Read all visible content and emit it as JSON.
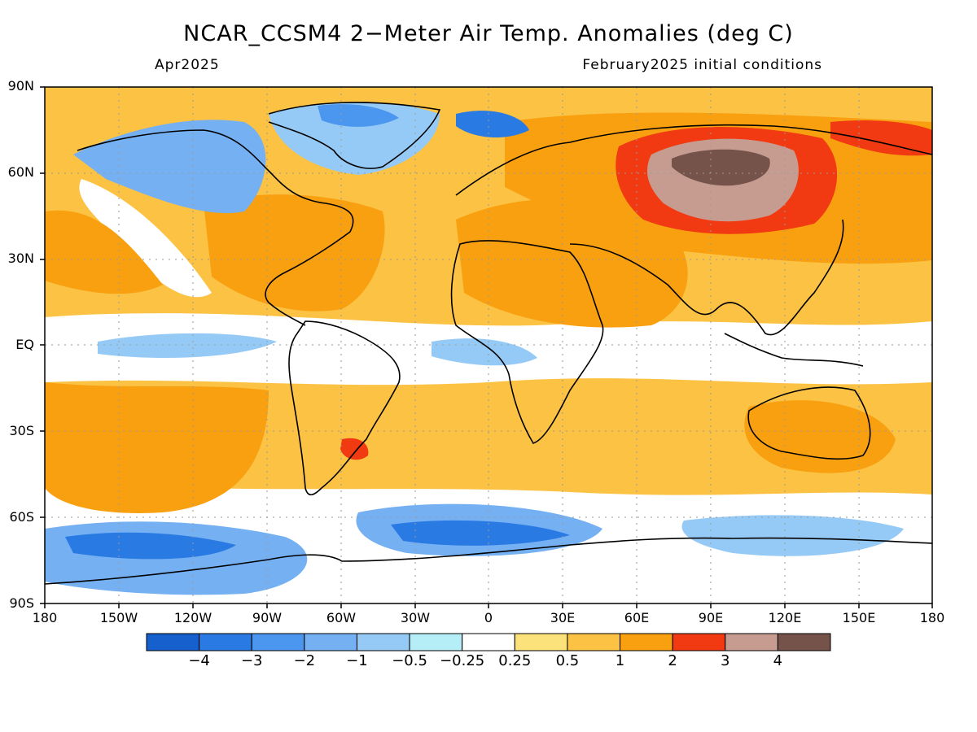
{
  "title": "NCAR_CCSM4 2−Meter Air Temp. Anomalies (deg C)",
  "subtitle_left": "Apr2025",
  "subtitle_right": "February2025 initial conditions",
  "lat_labels": [
    "90N",
    "60N",
    "30N",
    "EQ",
    "30S",
    "60S",
    "90S"
  ],
  "lon_labels": [
    "180",
    "150W",
    "120W",
    "90W",
    "60W",
    "30W",
    "0",
    "30E",
    "60E",
    "90E",
    "120E",
    "150E",
    "180"
  ],
  "colorbar": {
    "colors": [
      "#1560cc",
      "#2a7ae4",
      "#4b96ee",
      "#74b0f2",
      "#96caf6",
      "#b6eef8",
      "#ffffff",
      "#fce27a",
      "#fbc244",
      "#f9a011",
      "#f23a12",
      "#c69c90",
      "#75524a"
    ],
    "labels": [
      "−4",
      "−3",
      "−2",
      "−1",
      "−0.5",
      "−0.25",
      "0.25",
      "0.5",
      "1",
      "2",
      "3",
      "4"
    ]
  }
}
